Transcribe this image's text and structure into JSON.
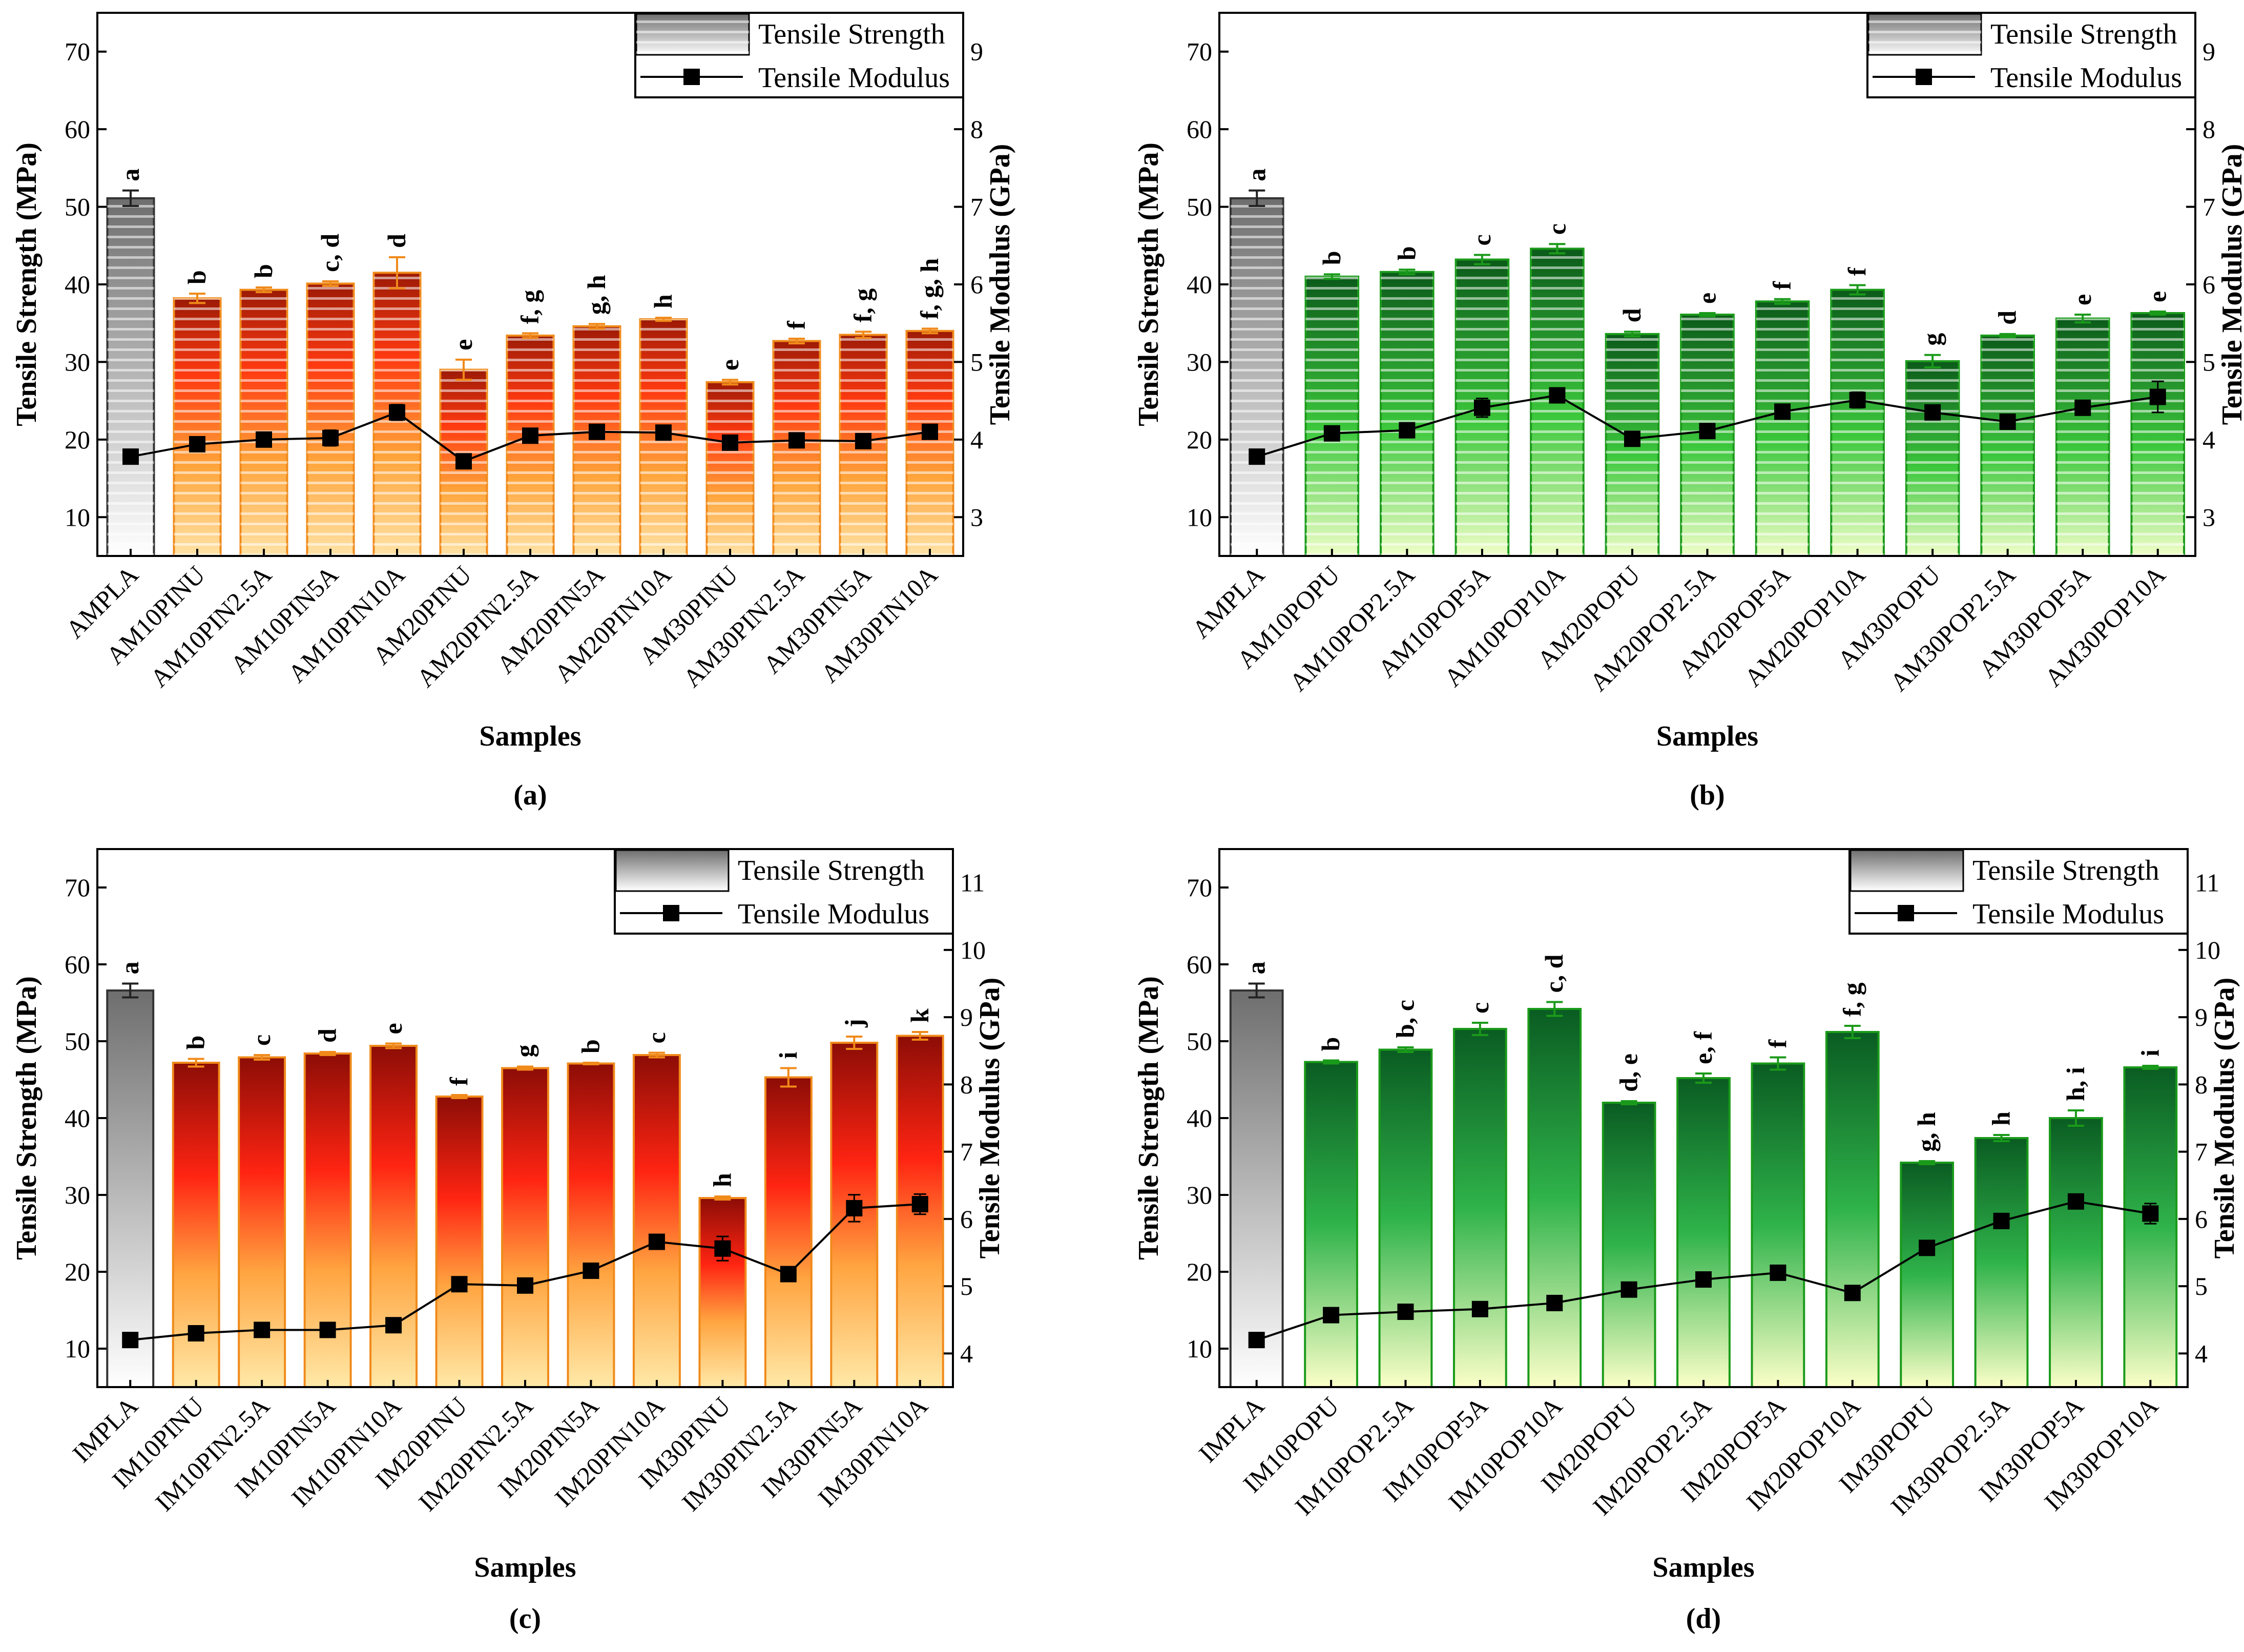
{
  "chart_data": [
    {
      "type": "bar",
      "panel_label": "(a)",
      "theme": "orange-striped",
      "title": "",
      "xlabel": "Samples",
      "ylabel": "Tensile Strength (MPa)",
      "y2label": "Tensile Modulus (GPa)",
      "ylim": [
        5,
        75
      ],
      "y2lim": [
        2.5,
        9.5
      ],
      "yticks": [
        "10",
        "20",
        "30",
        "40",
        "50",
        "60",
        "70"
      ],
      "y2ticks": [
        "3",
        "4",
        "5",
        "6",
        "7",
        "8",
        "9"
      ],
      "legend": {
        "strength": "Tensile Strength",
        "modulus": "Tensile Modulus",
        "position": "top-right"
      },
      "categories": [
        "AMPLA",
        "AM10PINU",
        "AM10PIN2.5A",
        "AM10PIN5A",
        "AM10PIN10A",
        "AM20PINU",
        "AM20PIN2.5A",
        "AM20PIN5A",
        "AM20PIN10A",
        "AM30PINU",
        "AM30PIN2.5A",
        "AM30PIN5A",
        "AM30PIN10A"
      ],
      "series": [
        {
          "name": "Tensile Strength",
          "axis": "left",
          "values": [
            51.1,
            38.2,
            39.3,
            40.1,
            41.5,
            29.0,
            33.4,
            34.6,
            35.5,
            27.4,
            32.7,
            33.5,
            34.0
          ],
          "errors": [
            1.0,
            0.6,
            0.3,
            0.3,
            2.0,
            1.3,
            0.3,
            0.3,
            0.2,
            0.3,
            0.3,
            0.4,
            0.3
          ],
          "letters": [
            "a",
            "b",
            "b",
            "c, d",
            "d",
            "e",
            "f, g",
            "g, h",
            "h",
            "e",
            "f",
            "f, g",
            "f, g, h"
          ]
        },
        {
          "name": "Tensile Modulus",
          "axis": "right",
          "values": [
            3.78,
            3.94,
            4.0,
            4.02,
            4.35,
            3.72,
            4.05,
            4.1,
            4.09,
            3.96,
            3.99,
            3.98,
            4.1
          ],
          "errors": [
            0.03,
            0.04,
            0.05,
            0.1,
            0.1,
            0.03,
            0.05,
            0.03,
            0.03,
            0.04,
            0.04,
            0.04,
            0.04
          ]
        }
      ]
    },
    {
      "type": "bar",
      "panel_label": "(b)",
      "theme": "green-striped",
      "title": "",
      "xlabel": "Samples",
      "ylabel": "Tensile Strength (MPa)",
      "y2label": "Tensile Modulus (GPa)",
      "ylim": [
        5,
        75
      ],
      "y2lim": [
        2.5,
        9.5
      ],
      "yticks": [
        "10",
        "20",
        "30",
        "40",
        "50",
        "60",
        "70"
      ],
      "y2ticks": [
        "3",
        "4",
        "5",
        "6",
        "7",
        "8",
        "9"
      ],
      "legend": {
        "strength": "Tensile Strength",
        "modulus": "Tensile Modulus",
        "position": "top-right"
      },
      "categories": [
        "AMPLA",
        "AM10POPU",
        "AM10POP2.5A",
        "AM10POP5A",
        "AM10POP10A",
        "AM20POPU",
        "AM20POP2.5A",
        "AM20POP5A",
        "AM20POP10A",
        "AM30POPU",
        "AM30POP2.5A",
        "AM30POP5A",
        "AM30POP10A"
      ],
      "series": [
        {
          "name": "Tensile Strength",
          "axis": "left",
          "values": [
            51.1,
            41.0,
            41.6,
            43.2,
            44.6,
            33.6,
            36.1,
            37.8,
            39.3,
            30.1,
            33.4,
            35.6,
            36.3
          ],
          "errors": [
            1.0,
            0.3,
            0.3,
            0.6,
            0.6,
            0.3,
            0.2,
            0.3,
            0.6,
            0.8,
            0.2,
            0.5,
            0.2
          ],
          "letters": [
            "a",
            "b",
            "b",
            "c",
            "c",
            "d",
            "e",
            "f",
            "f",
            "g",
            "d",
            "e",
            "e"
          ]
        },
        {
          "name": "Tensile Modulus",
          "axis": "right",
          "values": [
            3.78,
            4.08,
            4.12,
            4.41,
            4.57,
            4.01,
            4.11,
            4.36,
            4.51,
            4.35,
            4.23,
            4.41,
            4.55
          ],
          "errors": [
            0.03,
            0.04,
            0.05,
            0.12,
            0.05,
            0.04,
            0.03,
            0.04,
            0.1,
            0.03,
            0.04,
            0.08,
            0.2
          ]
        }
      ]
    },
    {
      "type": "bar",
      "panel_label": "(c)",
      "theme": "orange-gradient",
      "title": "",
      "xlabel": "Samples",
      "ylabel": "Tensile Strength (MPa)",
      "y2label": "Tensile Modulus (GPa)",
      "ylim": [
        5,
        75
      ],
      "y2lim": [
        3.5,
        11.5
      ],
      "yticks": [
        "10",
        "20",
        "30",
        "40",
        "50",
        "60",
        "70"
      ],
      "y2ticks": [
        "4",
        "5",
        "6",
        "7",
        "8",
        "9",
        "10",
        "11"
      ],
      "legend": {
        "strength": "Tensile Strength",
        "modulus": "Tensile Modulus",
        "position": "top-right"
      },
      "categories": [
        "IMPLA",
        "IM10PINU",
        "IM10PIN2.5A",
        "IM10PIN5A",
        "IM10PIN10A",
        "IM20PINU",
        "IM20PIN2.5A",
        "IM20PIN5A",
        "IM20PIN10A",
        "IM30PINU",
        "IM30PIN2.5A",
        "IM30PIN5A",
        "IM30PIN10A"
      ],
      "series": [
        {
          "name": "Tensile Strength",
          "axis": "left",
          "values": [
            56.6,
            47.2,
            47.9,
            48.4,
            49.4,
            42.8,
            46.5,
            47.1,
            48.2,
            29.6,
            45.3,
            49.8,
            50.7
          ],
          "errors": [
            0.9,
            0.5,
            0.3,
            0.2,
            0.3,
            0.2,
            0.2,
            0.1,
            0.3,
            0.2,
            1.2,
            0.8,
            0.5
          ],
          "letters": [
            "a",
            "b",
            "c",
            "d",
            "e",
            "f",
            "g",
            "b",
            "c",
            "h",
            "i",
            "j",
            "k"
          ]
        },
        {
          "name": "Tensile Modulus",
          "axis": "right",
          "values": [
            4.2,
            4.3,
            4.35,
            4.35,
            4.42,
            5.03,
            5.01,
            5.23,
            5.66,
            5.56,
            5.18,
            6.16,
            6.22
          ],
          "errors": [
            0.03,
            0.03,
            0.03,
            0.03,
            0.03,
            0.05,
            0.04,
            0.1,
            0.05,
            0.18,
            0.04,
            0.2,
            0.15
          ]
        }
      ]
    },
    {
      "type": "bar",
      "panel_label": "(d)",
      "theme": "green-gradient",
      "title": "",
      "xlabel": "Samples",
      "ylabel": "Tensile Strength (MPa)",
      "y2label": "Tensile Modulus (GPa)",
      "ylim": [
        5,
        75
      ],
      "y2lim": [
        3.5,
        11.5
      ],
      "yticks": [
        "10",
        "20",
        "30",
        "40",
        "50",
        "60",
        "70"
      ],
      "y2ticks": [
        "4",
        "5",
        "6",
        "7",
        "8",
        "9",
        "10",
        "11"
      ],
      "legend": {
        "strength": "Tensile Strength",
        "modulus": "Tensile Modulus",
        "position": "top-right"
      },
      "categories": [
        "IMPLA",
        "IM10POPU",
        "IM10POP2.5A",
        "IM10POP5A",
        "IM10POP10A",
        "IM20POPU",
        "IM20POP2.5A",
        "IM20POP5A",
        "IM20POP10A",
        "IM30POPU",
        "IM30POP2.5A",
        "IM30POP5A",
        "IM30POP10A"
      ],
      "series": [
        {
          "name": "Tensile Strength",
          "axis": "left",
          "values": [
            56.6,
            47.3,
            48.9,
            51.6,
            54.2,
            42.0,
            45.2,
            47.1,
            51.2,
            34.2,
            37.4,
            40.0,
            46.6
          ],
          "errors": [
            0.9,
            0.2,
            0.3,
            0.8,
            0.9,
            0.2,
            0.6,
            0.8,
            0.8,
            0.2,
            0.4,
            1.0,
            0.2
          ],
          "letters": [
            "a",
            "b",
            "b, c",
            "c",
            "c, d",
            "d, e",
            "e, f",
            "f",
            "f, g",
            "g, h",
            "h",
            "h, i",
            "i"
          ]
        },
        {
          "name": "Tensile Modulus",
          "axis": "right",
          "values": [
            4.2,
            4.57,
            4.62,
            4.66,
            4.75,
            4.95,
            5.1,
            5.2,
            4.9,
            5.57,
            5.97,
            6.26,
            6.08
          ],
          "errors": [
            0.03,
            0.04,
            0.04,
            0.04,
            0.05,
            0.05,
            0.05,
            0.05,
            0.05,
            0.05,
            0.1,
            0.08,
            0.15
          ]
        }
      ]
    }
  ]
}
